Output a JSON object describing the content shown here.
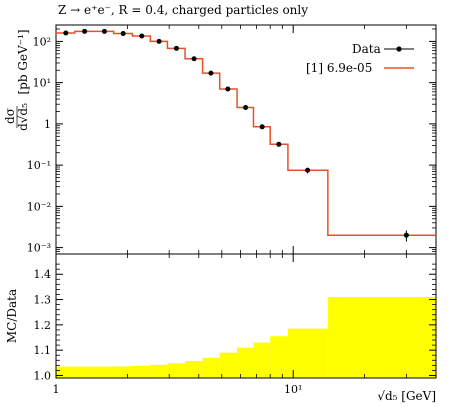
{
  "title": "Z → e⁺e⁻, R = 0.4, charged particles only",
  "top": {
    "ylabel": "[pb GeV⁻¹]",
    "ylabel_frac_num": "dσ",
    "ylabel_frac_den": "d√d₅",
    "yticks": [
      {
        "value": 0.001,
        "label": "10⁻³"
      },
      {
        "value": 0.01,
        "label": "10⁻²"
      },
      {
        "value": 0.1,
        "label": "10⁻¹"
      },
      {
        "value": 1,
        "label": "1"
      },
      {
        "value": 10,
        "label": "10¹"
      },
      {
        "value": 100,
        "label": "10²"
      }
    ]
  },
  "bottom": {
    "ylabel": "MC/Data",
    "yticks": [
      {
        "value": 1.0,
        "label": "1.0"
      },
      {
        "value": 1.1,
        "label": "1.1"
      },
      {
        "value": 1.2,
        "label": "1.2"
      },
      {
        "value": 1.3,
        "label": "1.3"
      },
      {
        "value": 1.4,
        "label": "1.4"
      }
    ]
  },
  "xlabel": "√d₅ [GeV]",
  "xticks": [
    {
      "value": 1,
      "label": "1"
    },
    {
      "value": 10,
      "label": "10¹"
    }
  ],
  "legend": {
    "data_label": "Data",
    "mc_label": "[1] 6.9e-05",
    "position": "top-right"
  },
  "colors": {
    "data": "#000000",
    "mc": "#e8502a",
    "band": "#ffff00"
  },
  "chart_data": {
    "type": "line",
    "x_scale": "log",
    "y_scale": "log",
    "xlim": [
      1,
      40
    ],
    "ylim": [
      0.0007,
      250
    ],
    "ratio_ylim": [
      0.99,
      1.48
    ],
    "bin_edges": [
      1.0,
      1.2,
      1.45,
      1.75,
      2.1,
      2.5,
      2.95,
      3.5,
      4.15,
      4.9,
      5.8,
      6.8,
      8.0,
      9.5,
      14.0,
      40.0
    ],
    "series": [
      {
        "name": "Data",
        "x": [
          1.1,
          1.32,
          1.6,
          1.92,
          2.3,
          2.72,
          3.22,
          3.82,
          4.5,
          5.3,
          6.3,
          7.4,
          8.7,
          11.5,
          30.0
        ],
        "y": [
          160,
          175,
          175,
          155,
          135,
          100,
          68,
          38,
          17,
          7.0,
          2.5,
          0.85,
          0.32,
          0.075,
          0.002
        ],
        "yerr": [
          0,
          0,
          0,
          0,
          0,
          0,
          0,
          0,
          0,
          0,
          0,
          0,
          0,
          0.012,
          0.0006
        ]
      },
      {
        "name": "[1] 6.9e-05",
        "values": [
          160,
          175,
          175,
          155,
          135,
          100,
          68,
          38,
          17,
          7.0,
          2.5,
          0.85,
          0.32,
          0.075,
          0.002
        ]
      }
    ],
    "ratio_band_upper": [
      1.035,
      1.035,
      1.035,
      1.036,
      1.038,
      1.042,
      1.048,
      1.057,
      1.07,
      1.09,
      1.11,
      1.13,
      1.155,
      1.185,
      1.31
    ]
  }
}
